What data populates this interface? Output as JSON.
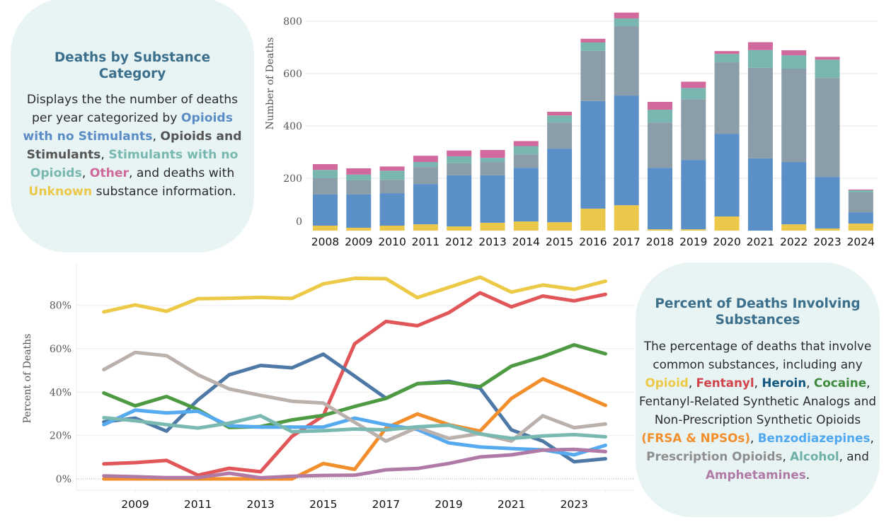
{
  "left_panel": {
    "title": "Deaths by Substance Category",
    "body": [
      {
        "text": "Displays the the number of deaths per year categorized by ",
        "color": null
      },
      {
        "text": "Opioids with no Stimulants",
        "color": "#5b8cc6"
      },
      {
        "text": ", ",
        "color": null
      },
      {
        "text": "Opioids and Stimulants",
        "color": "#555555"
      },
      {
        "text": ", ",
        "color": null
      },
      {
        "text": "Stimulants with no Opioids",
        "color": "#78b8b0"
      },
      {
        "text": ", ",
        "color": null
      },
      {
        "text": "Other",
        "color": "#d0699b"
      },
      {
        "text": ", and deaths with ",
        "color": null
      },
      {
        "text": "Unknown",
        "color": "#ebc84a"
      },
      {
        "text": " substance information.",
        "color": null
      }
    ]
  },
  "right_panel": {
    "title": "Percent of Deaths Involving Substances",
    "body": [
      {
        "text": "The percentage of deaths that involve common substances, including any ",
        "color": null
      },
      {
        "text": "Opioid",
        "color": "#edc948"
      },
      {
        "text": ", ",
        "color": null
      },
      {
        "text": "Fentanyl",
        "color": "#d1454b"
      },
      {
        "text": ", ",
        "color": null
      },
      {
        "text": "Heroin",
        "color": "#14577f"
      },
      {
        "text": ", ",
        "color": null
      },
      {
        "text": "Cocaine",
        "color": "#3f8a3c"
      },
      {
        "text": ", Fentanyl-Related Synthetic Analogs and Non-Prescription Synthetic Opioids ",
        "color": null
      },
      {
        "text": "(FRSA & NPSOs)",
        "color": "#f28e2b"
      },
      {
        "text": ", ",
        "color": null
      },
      {
        "text": "Benzodiazepines",
        "color": "#4fa8f0"
      },
      {
        "text": ", ",
        "color": null
      },
      {
        "text": "Prescription Opioids",
        "color": "#8e8e8e"
      },
      {
        "text": ", ",
        "color": null
      },
      {
        "text": "Alcohol",
        "color": "#6fb1a9"
      },
      {
        "text": ", and ",
        "color": null
      },
      {
        "text": "Amphetamines",
        "color": "#b07aa6"
      },
      {
        "text": ".",
        "color": null
      }
    ]
  },
  "chart_data": [
    {
      "type": "bar",
      "stacked": true,
      "title": "",
      "xlabel": "",
      "ylabel": "Number of Deaths",
      "ylim": [
        0,
        800
      ],
      "yticks": [
        0,
        200,
        400,
        600,
        800
      ],
      "grid": true,
      "categories": [
        "2008",
        "2009",
        "2010",
        "2011",
        "2012",
        "2013",
        "2014",
        "2015",
        "2016",
        "2017",
        "2018",
        "2019",
        "2020",
        "2021",
        "2022",
        "2023",
        "2024"
      ],
      "series": [
        {
          "name": "Unknown",
          "color": "#ebc84a",
          "values": [
            19,
            11,
            19,
            24,
            16,
            30,
            35,
            32,
            84,
            97,
            5,
            5,
            54,
            0,
            24,
            8,
            27
          ]
        },
        {
          "name": "Opioids with no Stimulants",
          "color": "#5b8fc7",
          "values": [
            119,
            127,
            124,
            154,
            195,
            181,
            205,
            281,
            411,
            419,
            235,
            265,
            316,
            276,
            238,
            197,
            43
          ]
        },
        {
          "name": "Opioids and Stimulants",
          "color": "#8c9daa",
          "values": [
            62,
            54,
            51,
            65,
            46,
            51,
            51,
            100,
            192,
            265,
            173,
            232,
            273,
            346,
            357,
            378,
            76
          ]
        },
        {
          "name": "Stimulants with no Opioids",
          "color": "#79b6b0",
          "values": [
            32,
            22,
            35,
            19,
            27,
            16,
            32,
            27,
            32,
            30,
            49,
            43,
            32,
            68,
            51,
            70,
            8
          ]
        },
        {
          "name": "Other",
          "color": "#d2699c",
          "values": [
            22,
            24,
            16,
            24,
            22,
            30,
            19,
            14,
            14,
            22,
            30,
            24,
            11,
            30,
            19,
            11,
            3
          ]
        }
      ]
    },
    {
      "type": "line",
      "title": "",
      "xlabel": "",
      "ylabel": "Percent of Deaths",
      "ylim": [
        -4,
        100
      ],
      "yticks": [
        0,
        20,
        40,
        60,
        80
      ],
      "ytick_suffix": "%",
      "grid": true,
      "x": [
        2008,
        2009,
        2010,
        2011,
        2012,
        2013,
        2014,
        2015,
        2016,
        2017,
        2018,
        2019,
        2020,
        2021,
        2022,
        2023,
        2024
      ],
      "xticks": [
        2009,
        2011,
        2013,
        2015,
        2017,
        2019,
        2021,
        2023
      ],
      "series": [
        {
          "name": "Opioid",
          "color": "#edc948",
          "values": [
            77.0,
            80.2,
            77.3,
            83.1,
            83.3,
            83.7,
            83.2,
            89.9,
            92.5,
            92.3,
            83.6,
            88.3,
            93.0,
            86.1,
            89.4,
            87.4,
            91.2
          ]
        },
        {
          "name": "Fentanyl",
          "color": "#e15759",
          "values": [
            6.9,
            7.5,
            8.5,
            1.7,
            4.9,
            3.3,
            19.6,
            29.1,
            62.3,
            72.6,
            70.6,
            76.6,
            85.8,
            79.3,
            84.3,
            82.1,
            85.1
          ]
        },
        {
          "name": "Heroin",
          "color": "#4e79a7",
          "values": [
            26.3,
            28.0,
            22.0,
            36.4,
            48.0,
            52.3,
            51.2,
            57.5,
            47.4,
            37.2,
            43.9,
            45.0,
            41.8,
            22.6,
            17.4,
            7.9,
            9.3
          ]
        },
        {
          "name": "Cocaine",
          "color": "#4e9a43",
          "values": [
            39.6,
            33.7,
            38.0,
            32.0,
            23.7,
            24.1,
            27.2,
            29.3,
            33.4,
            37.1,
            43.9,
            44.5,
            42.5,
            52.0,
            56.4,
            61.8,
            57.7
          ]
        },
        {
          "name": "FRSA & NPSOs",
          "color": "#f28e2b",
          "values": [
            0,
            0,
            0,
            0,
            0,
            0,
            0,
            7.1,
            4.4,
            23.4,
            29.9,
            25.0,
            22.0,
            37.1,
            46.1,
            40.2,
            33.9
          ]
        },
        {
          "name": "Benzodiazepines",
          "color": "#55aaf0",
          "values": [
            25.0,
            31.7,
            30.4,
            31.2,
            24.5,
            23.9,
            23.9,
            23.9,
            28.0,
            25.0,
            22.8,
            16.6,
            14.7,
            14.0,
            13.4,
            11.1,
            15.5
          ]
        },
        {
          "name": "Prescription Opioids",
          "color": "#bab0ac",
          "values": [
            50.4,
            58.3,
            56.8,
            48.0,
            41.5,
            38.5,
            35.8,
            35.0,
            26.1,
            17.4,
            23.7,
            18.7,
            20.9,
            17.4,
            29.1,
            23.6,
            25.3
          ]
        },
        {
          "name": "Alcohol",
          "color": "#79b9b1",
          "values": [
            28.2,
            26.8,
            25.0,
            23.4,
            25.7,
            29.1,
            21.8,
            22.2,
            23.0,
            22.6,
            24.0,
            24.8,
            20.7,
            18.7,
            19.8,
            20.4,
            19.4
          ]
        },
        {
          "name": "Amphetamines",
          "color": "#b07aa6",
          "values": [
            1.4,
            1.0,
            0.6,
            0.6,
            2.6,
            0.5,
            1.2,
            1.6,
            1.7,
            4.2,
            4.8,
            7.1,
            10.1,
            11.1,
            13.3,
            13.6,
            12.6
          ]
        }
      ]
    }
  ]
}
